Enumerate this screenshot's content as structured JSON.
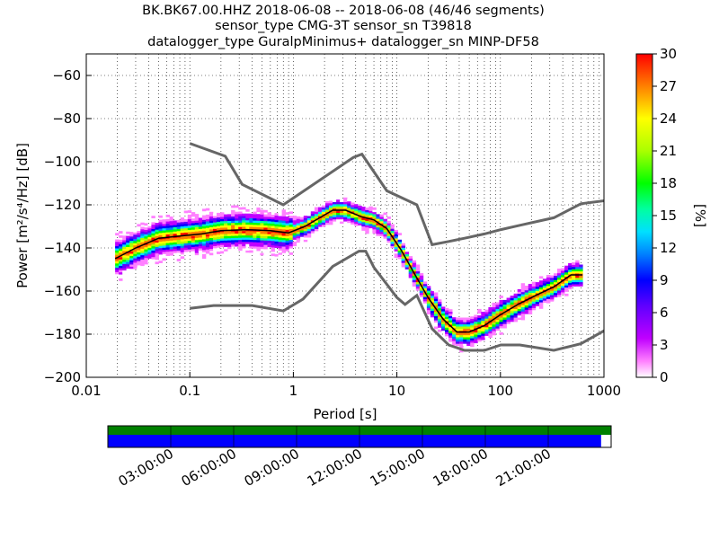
{
  "title_lines": [
    "BK.BK67.00.HHZ   2018-06-08 -- 2018-06-08  (46/46 segments)",
    "sensor_type CMG-3T sensor_sn T39818",
    "datalogger_type GuralpMinimus+ datalogger_sn MINP-DF58"
  ],
  "colorbar": {
    "label": "[%]",
    "min": 0,
    "max": 30,
    "ticks": [
      "0",
      "3",
      "6",
      "9",
      "12",
      "15",
      "18",
      "21",
      "24",
      "27",
      "30"
    ]
  },
  "timeline": {
    "tick_labels": [
      "03:00:00",
      "06:00:00",
      "09:00:00",
      "12:00:00",
      "15:00:00",
      "18:00:00",
      "21:00:00"
    ],
    "colors": {
      "top": "#008000",
      "bottom": "#0000ff"
    },
    "coverage_fraction": 0.98
  },
  "chart_data": {
    "type": "heatmap",
    "xlabel": "Period [s]",
    "ylabel": "Power [m²/s⁴/Hz] [dB]",
    "xscale": "log",
    "xlim": [
      0.01,
      1000
    ],
    "ylim": [
      -200,
      -50
    ],
    "xticks": [
      {
        "value": 0.01,
        "label": "0.01"
      },
      {
        "value": 0.1,
        "label": "0.1"
      },
      {
        "value": 1,
        "label": "1"
      },
      {
        "value": 10,
        "label": "10"
      },
      {
        "value": 100,
        "label": "100"
      },
      {
        "value": 1000,
        "label": "1000"
      }
    ],
    "yticks": [
      -200,
      -180,
      -160,
      -140,
      -120,
      -100,
      -80,
      -60
    ],
    "grid": true,
    "series": [
      {
        "role": "noise-model-high",
        "x": [
          0.1,
          0.22,
          0.32,
          0.8,
          3.8,
          4.6,
          8.0,
          15.6,
          21.9,
          31.6,
          45.0,
          70.0,
          101.0,
          154.0,
          328.0,
          600.0,
          10000.0
        ],
        "y": [
          -91.5,
          -97.4,
          -110.5,
          -120.0,
          -98.0,
          -96.5,
          -113.5,
          -120.0,
          -138.5,
          -137.0,
          -135.5,
          -133.5,
          -131.5,
          -129.5,
          -126.0,
          -119.5,
          -112.0
        ]
      },
      {
        "role": "noise-model-low",
        "x": [
          0.1,
          0.17,
          0.4,
          0.8,
          1.24,
          2.4,
          4.3,
          5.0,
          6.0,
          10.0,
          12.0,
          15.6,
          21.9,
          31.6,
          45.0,
          70.0,
          101.0,
          154.0,
          328.0,
          600.0,
          10000.0
        ],
        "y": [
          -168.0,
          -166.7,
          -166.7,
          -169.2,
          -163.7,
          -148.6,
          -141.5,
          -141.5,
          -149.0,
          -163.0,
          -166.2,
          -162.0,
          -177.5,
          -185.0,
          -187.5,
          -187.5,
          -185.0,
          -185.0,
          -187.5,
          -184.4,
          -151.5
        ]
      },
      {
        "role": "mean-psd",
        "x": [
          0.019,
          0.03,
          0.05,
          0.08,
          0.13,
          0.2,
          0.35,
          0.6,
          0.9,
          1.3,
          1.8,
          2.4,
          3.2,
          4.5,
          6.0,
          8.0,
          11.0,
          15.0,
          20.0,
          28.0,
          38.0,
          50.0,
          70.0,
          100.0,
          150.0,
          220.0,
          330.0,
          480.0,
          620.0
        ],
        "y": [
          -145.0,
          -140.0,
          -135.5,
          -134.5,
          -133.5,
          -132.0,
          -131.5,
          -132.0,
          -133.0,
          -130.0,
          -126.0,
          -122.5,
          -122.5,
          -125.5,
          -127.0,
          -131.0,
          -141.0,
          -152.5,
          -163.0,
          -173.0,
          -179.0,
          -179.0,
          -176.0,
          -171.0,
          -166.0,
          -162.0,
          -158.0,
          -152.5,
          -152.5
        ]
      }
    ]
  }
}
